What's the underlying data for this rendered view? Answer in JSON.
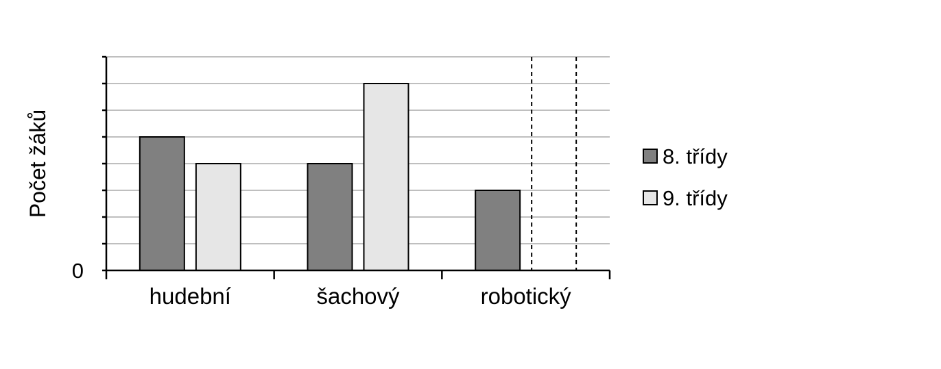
{
  "chart_data": {
    "type": "bar",
    "title": "",
    "xlabel": "",
    "ylabel": "Počet žáků",
    "categories": [
      "hudební",
      "šachový",
      "robotický"
    ],
    "series": [
      {
        "name": "8. třídy",
        "values": [
          5,
          4,
          3
        ],
        "color": "#808080"
      },
      {
        "name": "9. třídy",
        "values": [
          4,
          7,
          null
        ],
        "color": "#e6e6e6"
      }
    ],
    "missing_value_marker": "dashed-outline",
    "ylim": [
      0,
      8
    ],
    "y_tick_labels": [
      "0"
    ],
    "grid": true,
    "legend_position": "right"
  }
}
